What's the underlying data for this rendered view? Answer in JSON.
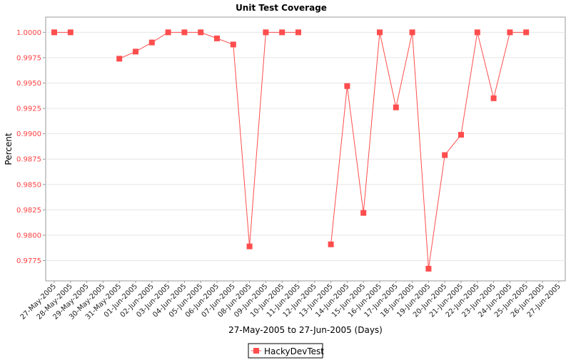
{
  "chart_data": {
    "type": "line",
    "title": "Unit Test Coverage",
    "xlabel": "27-May-2005 to 27-Jun-2005 (Days)",
    "ylabel": "Percent",
    "ylim": [
      0.9755,
      1.0015
    ],
    "yticks": [
      1.0,
      0.9975,
      0.995,
      0.9925,
      0.99,
      0.9875,
      0.985,
      0.9825,
      0.98,
      0.9775
    ],
    "ytick_labels": [
      "1.0000",
      "0.9975",
      "0.9950",
      "0.9925",
      "0.9900",
      "0.9875",
      "0.9850",
      "0.9825",
      "0.9800",
      "0.9775"
    ],
    "categories": [
      "27-May-2005",
      "28-May-2005",
      "29-May-2005",
      "30-May-2005",
      "31-May-2005",
      "01-Jun-2005",
      "02-Jun-2005",
      "03-Jun-2005",
      "04-Jun-2005",
      "05-Jun-2005",
      "06-Jun-2005",
      "07-Jun-2005",
      "08-Jun-2005",
      "09-Jun-2005",
      "10-Jun-2005",
      "11-Jun-2005",
      "12-Jun-2005",
      "13-Jun-2005",
      "14-Jun-2005",
      "15-Jun-2005",
      "16-Jun-2005",
      "17-Jun-2005",
      "18-Jun-2005",
      "19-Jun-2005",
      "20-Jun-2005",
      "21-Jun-2005",
      "22-Jun-2005",
      "23-Jun-2005",
      "24-Jun-2005",
      "25-Jun-2005",
      "26-Jun-2005",
      "27-Jun-2005"
    ],
    "series": [
      {
        "name": "HackyDevTest",
        "color": "#ff4d4d",
        "values": [
          1.0,
          1.0,
          null,
          null,
          0.9974,
          0.9981,
          0.999,
          1.0,
          1.0,
          1.0,
          0.9994,
          0.9988,
          0.9789,
          1.0,
          1.0,
          1.0,
          null,
          0.9791,
          0.9947,
          0.9822,
          1.0,
          0.9926,
          1.0,
          0.9767,
          0.9879,
          0.9899,
          1.0,
          0.9935,
          1.0,
          1.0,
          null,
          null
        ]
      }
    ],
    "grid": true,
    "legend": "bottom-center"
  }
}
